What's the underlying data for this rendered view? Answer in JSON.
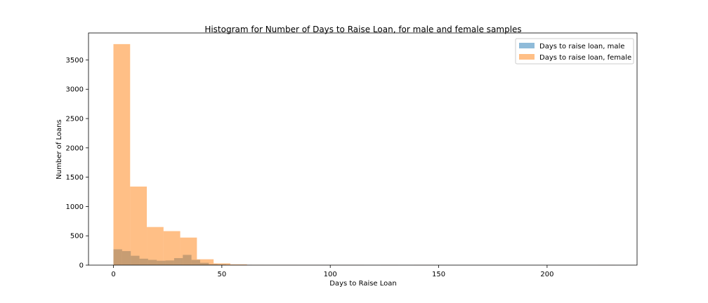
{
  "chart_data": {
    "type": "bar",
    "subtype": "overlaid-histogram",
    "title": "Histogram for Number of Days to Raise Loan, for male and female samples",
    "xlabel": "Days to Raise Loan",
    "ylabel": "Number of Loans",
    "xlim": [
      -11.5,
      241.5
    ],
    "ylim": [
      0,
      3960
    ],
    "xticks": [
      0,
      50,
      100,
      150,
      200
    ],
    "yticks": [
      0,
      500,
      1000,
      1500,
      2000,
      2500,
      3000,
      3500
    ],
    "grid": false,
    "legend": "top-right",
    "series": [
      {
        "name": "Days to raise loan, male",
        "color": "#1f77b4",
        "opacity": 0.5,
        "bin_edges": [
          0,
          4,
          8,
          12,
          16,
          20,
          24,
          28,
          32,
          36,
          40,
          44,
          48,
          52,
          56,
          60,
          64
        ],
        "counts": [
          270,
          240,
          160,
          110,
          90,
          75,
          80,
          120,
          175,
          90,
          40,
          15,
          10,
          6,
          4,
          3
        ]
      },
      {
        "name": "Days to raise loan, female",
        "color": "#ff7f0e",
        "opacity": 0.5,
        "bin_edges": [
          0,
          7.7,
          15.4,
          23.1,
          30.8,
          38.5,
          46.2,
          53.9,
          61.6,
          69.3,
          77,
          84.7,
          92.4,
          100.1,
          107.8,
          115.5,
          123.2,
          130.9,
          138.6,
          146.3,
          154,
          161.7,
          169.4,
          177.1,
          184.8,
          192.5,
          200.2,
          207.9,
          215.6,
          223.3,
          231
        ],
        "counts": [
          3770,
          1340,
          650,
          580,
          470,
          100,
          30,
          12,
          5,
          3,
          2,
          1,
          1,
          1,
          1,
          0,
          1,
          0,
          1,
          0,
          0,
          0,
          0,
          0,
          0,
          0,
          0,
          0,
          0,
          1
        ]
      }
    ]
  }
}
